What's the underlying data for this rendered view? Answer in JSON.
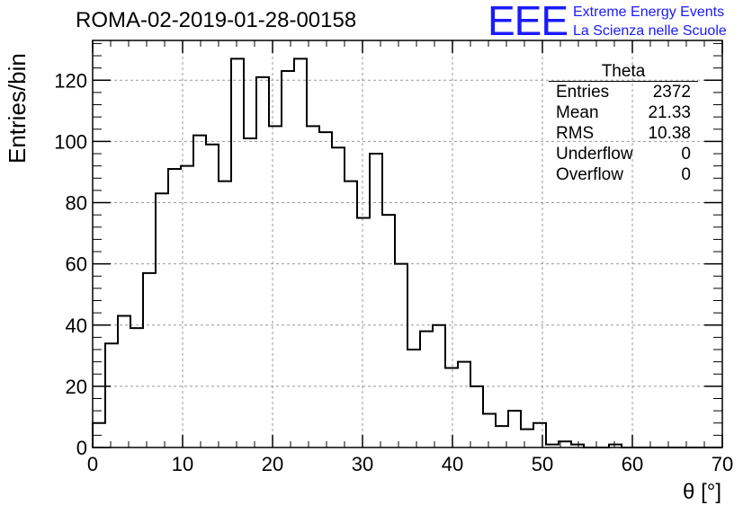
{
  "header": {
    "title": "ROMA-02-2019-01-28-00158",
    "logo_text": "EEE",
    "logo_line1": "Extreme Energy Events",
    "logo_line2": "La Scienza nelle Scuole"
  },
  "stats_box": {
    "title": "Theta",
    "rows": [
      {
        "label": "Entries",
        "value": "2372"
      },
      {
        "label": "Mean",
        "value": "21.33"
      },
      {
        "label": "RMS",
        "value": "10.38"
      },
      {
        "label": "Underflow",
        "value": "0"
      },
      {
        "label": "Overflow",
        "value": "0"
      }
    ]
  },
  "colors": {
    "histogram": "#000000",
    "grid": "#999999",
    "logo": "#1a1aff"
  },
  "chart_data": {
    "type": "bar",
    "xlabel": "θ [°]",
    "ylabel": "Entries/bin",
    "xlim": [
      0,
      70
    ],
    "ylim": [
      0,
      133
    ],
    "grid": true,
    "bin_width": 1.4,
    "x_ticks": [
      "0",
      "10",
      "20",
      "30",
      "40",
      "50",
      "60",
      "70"
    ],
    "y_ticks": [
      "0",
      "20",
      "40",
      "60",
      "80",
      "100",
      "120"
    ],
    "values": [
      8,
      34,
      43,
      39,
      57,
      83,
      91,
      92,
      102,
      99,
      87,
      127,
      101,
      121,
      105,
      123,
      127,
      105,
      103,
      98,
      87,
      75,
      96,
      76,
      60,
      32,
      38,
      40,
      26,
      28,
      20,
      11,
      7,
      12,
      6,
      8,
      1,
      2,
      1,
      0,
      0,
      1,
      0,
      0,
      0,
      0,
      0,
      0,
      0,
      0
    ]
  }
}
